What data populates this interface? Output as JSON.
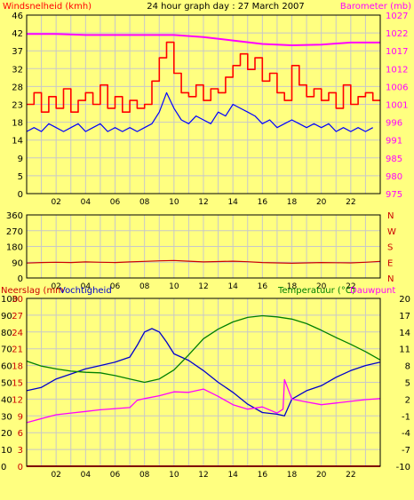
{
  "colors": {
    "background": "#ffff80",
    "plot_background": "#ffff80",
    "grid": "#c8c8c8",
    "frame": "#000000",
    "wind_gust": "#ff0000",
    "wind_avg": "#0000ff",
    "barometer": "#ff00ff",
    "direction": "#cc0000",
    "rain": "#ff0000",
    "humidity": "#0000cc",
    "temperature": "#008000",
    "dewpoint": "#ff00ff"
  },
  "chart_data": [
    {
      "type": "line",
      "title": "24 hour graph day : 27 March 2007",
      "ylabel_left": "Windsnelheid (kmh)",
      "ylabel_right": "Barometer (mb)",
      "x_ticks": [
        "02",
        "04",
        "06",
        "08",
        "10",
        "12",
        "14",
        "16",
        "18",
        "20",
        "22"
      ],
      "x_range": [
        0,
        24
      ],
      "y_left_ticks": [
        "46",
        "42",
        "37",
        "32",
        "28",
        "23",
        "18",
        "14",
        "9",
        "5",
        "0"
      ],
      "y_left_range": [
        0,
        46
      ],
      "y_right_ticks": [
        "1027",
        "1022",
        "1017",
        "1012",
        "1006",
        "1001",
        "996",
        "991",
        "985",
        "980",
        "975"
      ],
      "y_right_range": [
        975,
        1027
      ],
      "grid": true,
      "series": [
        {
          "key": "gust",
          "axis": "left",
          "step": true,
          "x": [
            0,
            0.5,
            1,
            1.5,
            2,
            2.5,
            3,
            3.5,
            4,
            4.5,
            5,
            5.5,
            6,
            6.5,
            7,
            7.5,
            8,
            8.5,
            9,
            9.5,
            10,
            10.5,
            11,
            11.5,
            12,
            12.5,
            13,
            13.5,
            14,
            14.5,
            15,
            15.5,
            16,
            16.5,
            17,
            17.5,
            18,
            18.5,
            19,
            19.5,
            20,
            20.5,
            21,
            21.5,
            22,
            22.5,
            23,
            23.5
          ],
          "values": [
            23,
            26,
            21,
            25,
            22,
            27,
            21,
            24,
            26,
            23,
            28,
            22,
            25,
            21,
            24,
            22,
            23,
            29,
            35,
            39,
            31,
            26,
            25,
            28,
            24,
            27,
            26,
            30,
            33,
            36,
            32,
            35,
            29,
            31,
            26,
            24,
            33,
            28,
            25,
            27,
            24,
            26,
            22,
            28,
            23,
            25,
            26,
            24
          ]
        },
        {
          "key": "average",
          "axis": "left",
          "step": false,
          "x": [
            0,
            0.5,
            1,
            1.5,
            2,
            2.5,
            3,
            3.5,
            4,
            4.5,
            5,
            5.5,
            6,
            6.5,
            7,
            7.5,
            8,
            8.5,
            9,
            9.5,
            10,
            10.5,
            11,
            11.5,
            12,
            12.5,
            13,
            13.5,
            14,
            14.5,
            15,
            15.5,
            16,
            16.5,
            17,
            17.5,
            18,
            18.5,
            19,
            19.5,
            20,
            20.5,
            21,
            21.5,
            22,
            22.5,
            23,
            23.5
          ],
          "values": [
            16,
            17,
            16,
            18,
            17,
            16,
            17,
            18,
            16,
            17,
            18,
            16,
            17,
            16,
            17,
            16,
            17,
            18,
            21,
            26,
            22,
            19,
            18,
            20,
            19,
            18,
            21,
            20,
            23,
            22,
            21,
            20,
            18,
            19,
            17,
            18,
            19,
            18,
            17,
            18,
            17,
            18,
            16,
            17,
            16,
            17,
            16,
            17
          ]
        },
        {
          "key": "barometer",
          "axis": "right",
          "step": false,
          "x": [
            0,
            2,
            4,
            6,
            8,
            10,
            12,
            14,
            16,
            18,
            20,
            22,
            24
          ],
          "values": [
            1021.5,
            1021.5,
            1021.2,
            1021.2,
            1021.2,
            1021.2,
            1020.6,
            1019.6,
            1018.6,
            1018.2,
            1018.4,
            1019.0,
            1019.0
          ]
        }
      ]
    },
    {
      "type": "line",
      "x_ticks": [
        "02",
        "04",
        "06",
        "08",
        "10",
        "12",
        "14",
        "16",
        "18",
        "20",
        "22"
      ],
      "x_range": [
        0,
        24
      ],
      "y_left_ticks": [
        "360",
        "270",
        "180",
        "90",
        "0"
      ],
      "y_left_range": [
        0,
        360
      ],
      "y_right_ticks": [
        "N",
        "W",
        "S",
        "E",
        "N"
      ],
      "grid": true,
      "series": [
        {
          "key": "direction",
          "x": [
            0,
            1,
            2,
            3,
            4,
            5,
            6,
            7,
            8,
            9,
            10,
            11,
            12,
            13,
            14,
            15,
            16,
            17,
            18,
            19,
            20,
            21,
            22,
            23,
            24
          ],
          "values": [
            85,
            88,
            90,
            88,
            92,
            90,
            88,
            92,
            95,
            98,
            100,
            96,
            92,
            94,
            96,
            93,
            88,
            86,
            84,
            86,
            88,
            87,
            86,
            90,
            95
          ]
        }
      ]
    },
    {
      "type": "line",
      "ylabel_left_a": "Neerslag (mm",
      "ylabel_left_b": "Vochtigheid",
      "ylabel_right_a": "Temperatuur (°C)",
      "ylabel_right_b": "Dauwpunt",
      "x_ticks": [
        "02",
        "04",
        "06",
        "08",
        "10",
        "12",
        "14",
        "16",
        "18",
        "20",
        "22"
      ],
      "x_range": [
        0,
        24
      ],
      "humidity_ticks": [
        "100",
        "90",
        "80",
        "70",
        "60",
        "50",
        "40",
        "30",
        "20",
        "10",
        "0"
      ],
      "humidity_range": [
        0,
        100
      ],
      "rain_ticks": [
        "30",
        "27",
        "24",
        "21",
        "18",
        "15",
        "12",
        "9",
        "6",
        "3",
        "0"
      ],
      "rain_range": [
        0,
        30
      ],
      "temp_ticks": [
        "20",
        "17",
        "14",
        "11",
        "8",
        "5",
        "2",
        "-1",
        "-4",
        "-7",
        "-10"
      ],
      "temp_range": [
        -10,
        20
      ],
      "grid": true,
      "series": [
        {
          "key": "humidity",
          "axis": "humidity",
          "x": [
            0,
            1,
            2,
            3,
            4,
            5,
            6,
            7,
            7.5,
            8,
            8.5,
            9,
            9.5,
            10,
            11,
            12,
            13,
            14,
            15,
            16,
            17,
            17.5,
            18,
            19,
            20,
            21,
            22,
            23,
            24
          ],
          "values": [
            45,
            47,
            52,
            55,
            58,
            60,
            62,
            65,
            72,
            80,
            82,
            80,
            74,
            67,
            63,
            57,
            50,
            44,
            37,
            32,
            31,
            30,
            40,
            45,
            48,
            53,
            57,
            60,
            62
          ]
        },
        {
          "key": "temperature",
          "axis": "temp",
          "x": [
            0,
            1,
            2,
            3,
            4,
            5,
            6,
            7,
            8,
            9,
            10,
            11,
            12,
            13,
            14,
            15,
            16,
            17,
            18,
            19,
            20,
            21,
            22,
            23,
            24
          ],
          "values": [
            8.8,
            7.9,
            7.4,
            7.0,
            6.8,
            6.7,
            6.2,
            5.6,
            5.0,
            5.6,
            7.2,
            9.9,
            12.8,
            14.5,
            15.8,
            16.6,
            16.9,
            16.7,
            16.3,
            15.5,
            14.3,
            13.0,
            11.8,
            10.5,
            9.0
          ]
        },
        {
          "key": "dewpoint",
          "axis": "temp",
          "x": [
            0,
            1,
            2,
            3,
            4,
            5,
            6,
            7,
            7.5,
            8,
            9,
            10,
            11,
            12,
            13,
            14,
            15,
            16,
            17,
            17.4,
            17.5,
            18,
            19,
            20,
            21,
            22,
            23,
            24
          ],
          "values": [
            -2.2,
            -1.5,
            -0.8,
            -0.5,
            -0.2,
            0.1,
            0.3,
            0.5,
            1.8,
            2.1,
            2.6,
            3.3,
            3.2,
            3.8,
            2.5,
            1.0,
            0.2,
            0.6,
            -0.5,
            0.2,
            5.5,
            2.0,
            1.5,
            1.0,
            1.3,
            1.6,
            1.9,
            2.1
          ]
        },
        {
          "key": "rain",
          "axis": "rain",
          "x": [
            0,
            24
          ],
          "values": [
            0,
            0
          ]
        }
      ]
    }
  ]
}
